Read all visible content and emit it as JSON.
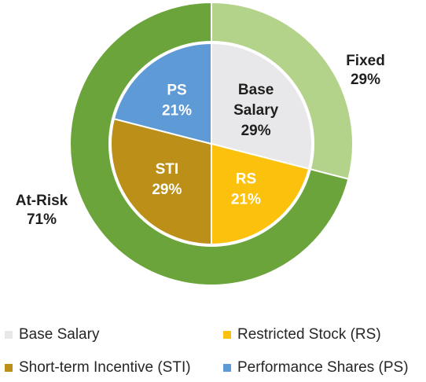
{
  "chart_data": {
    "type": "pie",
    "outer_ring": [
      {
        "name": "Fixed",
        "value": 29,
        "label": "29%",
        "color": "#b3d38a"
      },
      {
        "name": "At-Risk",
        "value": 71,
        "label": "71%",
        "color": "#6ba43a"
      }
    ],
    "inner_pie": [
      {
        "name": "Base Salary",
        "short": "Base Salary",
        "value": 29,
        "label": "29%",
        "color": "#e8e8ea",
        "text_color": "#1f1f1f"
      },
      {
        "name": "Restricted Stock (RS)",
        "short": "RS",
        "value": 21,
        "label": "21%",
        "color": "#fbc10c",
        "text_color": "#ffffff"
      },
      {
        "name": "Short-term Incentive (STI)",
        "short": "STI",
        "value": 29,
        "label": "29%",
        "color": "#bc8f18",
        "text_color": "#ffffff"
      },
      {
        "name": "Performance Shares (PS)",
        "short": "PS",
        "value": 21,
        "label": "21%",
        "color": "#5e9ad6",
        "text_color": "#ffffff"
      }
    ],
    "legend": [
      {
        "label": "Base Salary",
        "color": "#e8e8ea"
      },
      {
        "label": "Restricted Stock (RS)",
        "color": "#fbc10c"
      },
      {
        "label": "Short-term Incentive (STI)",
        "color": "#bc8f18"
      },
      {
        "label": "Performance Shares (PS)",
        "color": "#5e9ad6"
      }
    ],
    "legend_placement": "bottom"
  }
}
